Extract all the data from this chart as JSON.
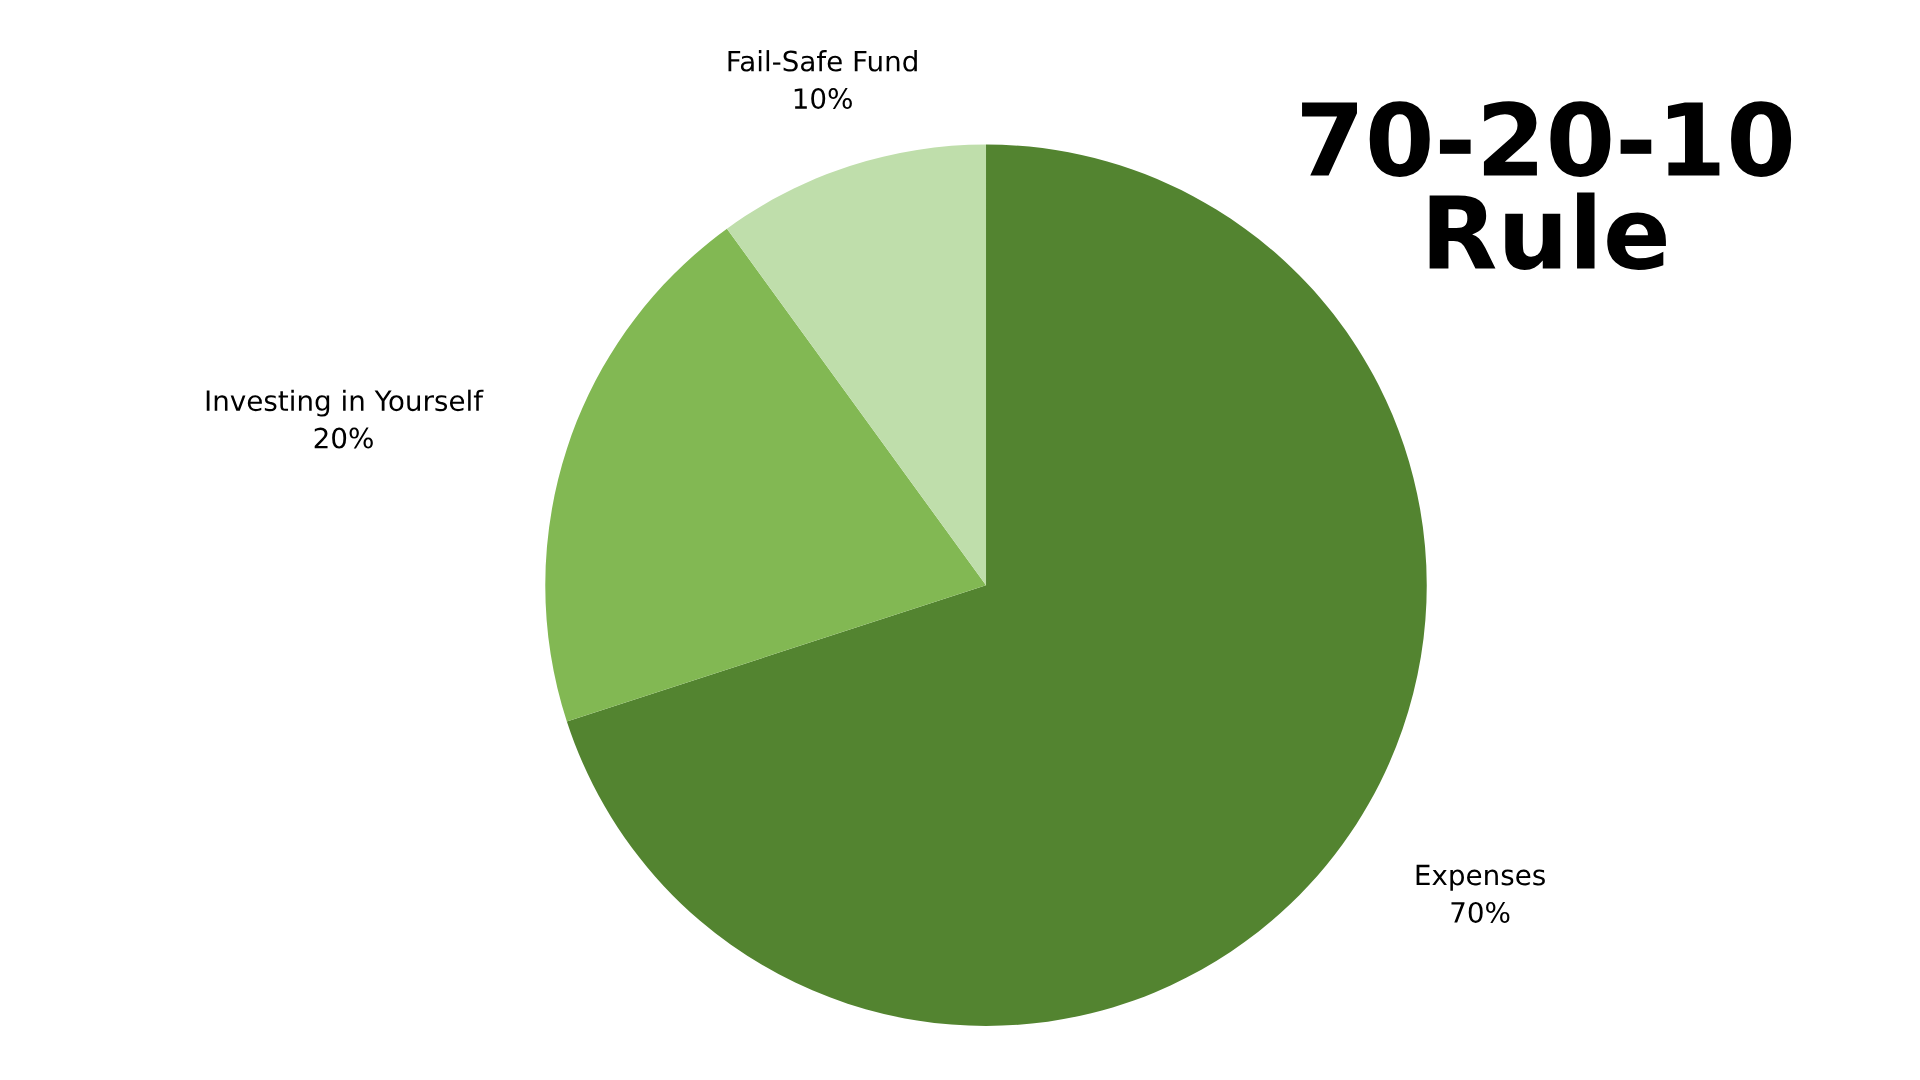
{
  "chart_data": {
    "type": "pie",
    "title": "70-20-10\nRule",
    "categories": [
      "Expenses",
      "Investing in Yourself",
      "Fail-Safe Fund"
    ],
    "values": [
      70,
      20,
      10
    ],
    "value_labels": [
      "70%",
      "20%",
      "10%"
    ],
    "colors": [
      "#538430",
      "#82b853",
      "#bfdeab"
    ],
    "legend": false
  }
}
